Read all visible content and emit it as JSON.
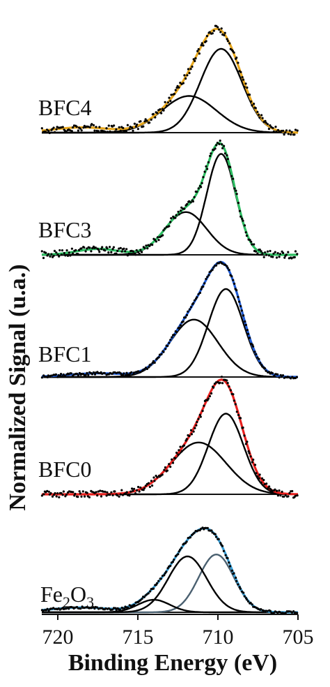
{
  "chart_data": {
    "type": "line",
    "xlabel": "Binding Energy (eV)",
    "ylabel": "Normalized Signal (u.a.)",
    "xlim": [
      721,
      705
    ],
    "x_reversed": true,
    "x_ticks": [
      "720",
      "715",
      "710",
      "705"
    ],
    "panels": [
      {
        "label": "BFC4",
        "colors": {
          "envelope": "#E8A81E",
          "components": "#000000",
          "points": "#000000"
        },
        "components": [
          {
            "center": 709.8,
            "height": 0.8,
            "sigma": 1.3
          },
          {
            "center": 711.8,
            "height": 0.35,
            "sigma": 1.7
          }
        ],
        "background": [
          {
            "center": 718.5,
            "height": 0.05,
            "sigma": 1.8
          }
        ],
        "noise": 0.035
      },
      {
        "label": "BFC3",
        "colors": {
          "envelope": "#2DBE62",
          "components": "#000000",
          "points": "#000000"
        },
        "components": [
          {
            "center": 709.8,
            "height": 0.85,
            "sigma": 0.9
          },
          {
            "center": 712.0,
            "height": 0.36,
            "sigma": 1.3
          }
        ],
        "background": [
          {
            "center": 717.5,
            "height": 0.05,
            "sigma": 1.3
          }
        ],
        "noise": 0.03
      },
      {
        "label": "BFC1",
        "colors": {
          "envelope": "#1E5BD6",
          "components": "#000000",
          "points": "#000000"
        },
        "components": [
          {
            "center": 709.5,
            "height": 0.72,
            "sigma": 1.1
          },
          {
            "center": 711.5,
            "height": 0.47,
            "sigma": 1.5
          }
        ],
        "background": [
          {
            "center": 717.5,
            "height": 0.03,
            "sigma": 1.8
          }
        ],
        "noise": 0.012
      },
      {
        "label": "BFC0",
        "colors": {
          "envelope": "#E8201E",
          "components": "#000000",
          "points": "#000000"
        },
        "components": [
          {
            "center": 709.5,
            "height": 0.7,
            "sigma": 1.1
          },
          {
            "center": 711.2,
            "height": 0.45,
            "sigma": 1.7
          }
        ],
        "background": [],
        "noise": 0.03
      },
      {
        "label": "Fe2O3",
        "label_parts": [
          "Fe",
          "2",
          "O",
          "3"
        ],
        "colors": {
          "envelope": "#3AA0D8",
          "components": "#000000",
          "points": "#000000",
          "shoulder": "#4A6070"
        },
        "components": [
          {
            "center": 710.1,
            "height": 0.6,
            "sigma": 1.1,
            "color_key": "shoulder"
          },
          {
            "center": 711.9,
            "height": 0.58,
            "sigma": 1.2
          },
          {
            "center": 714.0,
            "height": 0.13,
            "sigma": 1.0
          }
        ],
        "background": [
          {
            "center": 718.5,
            "height": 0.05,
            "sigma": 2.0
          }
        ],
        "noise": 0.012
      }
    ]
  }
}
